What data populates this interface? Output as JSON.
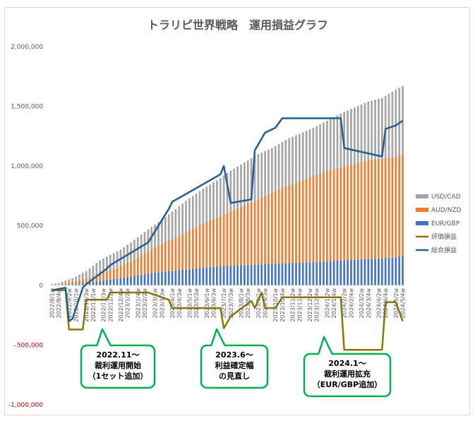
{
  "chart_data": {
    "type": "bar",
    "title": "トラリピ世界戦略　運用損益グラフ",
    "y_ticks": [
      "2,000,000",
      "1,500,000",
      "1,000,000",
      "500,000",
      "0",
      "-500,000",
      "-1,000,000"
    ],
    "y_tick_values": [
      2000000,
      1500000,
      1000000,
      500000,
      0,
      -500000,
      -1000000
    ],
    "ylim": [
      -1000000,
      2000000
    ],
    "x_tick_labels": [
      "2022/8/1w",
      "2022/8/4w",
      "2022/9/2w",
      "2022/10/1w",
      "2022/10/3w",
      "2022/11/1w",
      "2022/11/3w",
      "2022/12/2w",
      "2022/12/4w",
      "2023/1/2w",
      "2023/1/4w",
      "2023/2/2w",
      "2023/3/1w",
      "2023/3/3w",
      "2023/4/1w",
      "2023/4/3w",
      "2023/5/1w",
      "2023/5/3w",
      "2023/6/1w",
      "2023/6/3w",
      "2023/7/1w",
      "2023/7/3w",
      "2023/8/1w",
      "2023/8/3w",
      "2023/9/1w",
      "2023/9/3w",
      "2023/10/1w",
      "2023/10/4w",
      "2023/11/2w",
      "2023/11/4w",
      "2023/12/2w",
      "2023/12/4w",
      "2024/1/2w",
      "2024/1/4w",
      "2024/2/2w",
      "2024/2/4w",
      "2024/3/2w",
      "2024/3/4w",
      "2024/4/2w",
      "2024/4/4w",
      "2024/5/2w",
      "2024/5/4w"
    ],
    "series": [
      {
        "name": "USD/CAD",
        "kind": "stacked-bar",
        "color": "#a5a5a5"
      },
      {
        "name": "AUD/NZD",
        "kind": "stacked-bar",
        "color": "#ed7d31"
      },
      {
        "name": "EUR/GBP",
        "kind": "stacked-bar",
        "color": "#4472c4"
      },
      {
        "name": "評価損益",
        "kind": "line",
        "color": "#8c7a00"
      },
      {
        "name": "総合損益",
        "kind": "line",
        "color": "#255e91"
      }
    ],
    "stack_totals_anchor": {
      "x_index": [
        0,
        2,
        6,
        10,
        14,
        20,
        24,
        28,
        32,
        36,
        40,
        44,
        48,
        52,
        56,
        60,
        64,
        68,
        72,
        76,
        80,
        84,
        88,
        92,
        96,
        100,
        102
      ],
      "total": [
        10000,
        20000,
        60000,
        120000,
        210000,
        300000,
        380000,
        470000,
        550000,
        640000,
        730000,
        810000,
        880000,
        960000,
        1030000,
        1100000,
        1150000,
        1220000,
        1270000,
        1320000,
        1380000,
        1440000,
        1490000,
        1540000,
        1570000,
        1640000,
        1670000
      ],
      "aud_nzd_top": [
        5000,
        10000,
        30000,
        60000,
        100000,
        160000,
        220000,
        290000,
        350000,
        400000,
        460000,
        520000,
        570000,
        620000,
        670000,
        720000,
        780000,
        830000,
        870000,
        920000,
        960000,
        990000,
        1020000,
        1050000,
        1060000,
        1080000,
        1100000
      ],
      "eur_gbp_top": [
        2000,
        4000,
        10000,
        20000,
        40000,
        60000,
        80000,
        100000,
        115000,
        125000,
        135000,
        150000,
        160000,
        165000,
        170000,
        175000,
        180000,
        185000,
        190000,
        195000,
        200000,
        210000,
        215000,
        220000,
        225000,
        235000,
        245000
      ]
    },
    "line_anchor_x_index": [
      0,
      4,
      5,
      6,
      9,
      10,
      16,
      17,
      28,
      34,
      35,
      49,
      50,
      52,
      58,
      59,
      61,
      62,
      65,
      67,
      84,
      85,
      96,
      97,
      100,
      102
    ],
    "valuation_profit_loss": [
      -40000,
      -40000,
      -370000,
      -370000,
      -370000,
      -120000,
      -120000,
      -60000,
      -60000,
      -120000,
      -190000,
      -190000,
      -360000,
      -260000,
      -130000,
      -190000,
      -60000,
      -190000,
      -190000,
      -100000,
      -100000,
      -540000,
      -540000,
      -140000,
      -140000,
      -300000
    ],
    "total_profit_loss": [
      -40000,
      -20000,
      -300000,
      -280000,
      -20000,
      10000,
      140000,
      170000,
      360000,
      640000,
      700000,
      930000,
      1000000,
      690000,
      720000,
      1130000,
      1230000,
      1280000,
      1320000,
      1400000,
      1400000,
      1150000,
      1080000,
      1310000,
      1340000,
      1380000
    ],
    "legend_position": "right",
    "grid": false
  },
  "annotations": [
    {
      "id": "note1",
      "lines": [
        "2022.11～",
        "裁利運用開始",
        "（1セット追加）"
      ]
    },
    {
      "id": "note2",
      "lines": [
        "2023.6～",
        "利益確定幅",
        "の見直し"
      ]
    },
    {
      "id": "note3",
      "lines": [
        "2024.1～",
        "裁利運用拡充",
        "（EUR/GBP追加）"
      ]
    }
  ],
  "annotation_colors": {
    "border": "#00b050"
  }
}
